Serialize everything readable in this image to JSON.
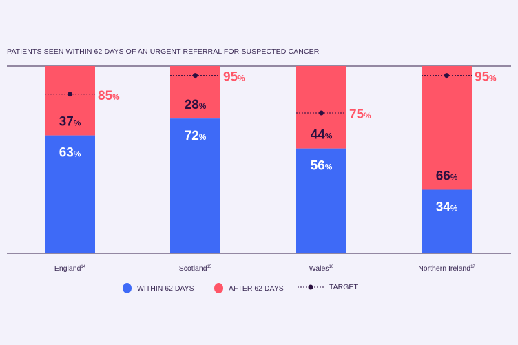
{
  "chart_data": {
    "type": "bar",
    "stacked": true,
    "title": "PATIENTS SEEN WITHIN 62 DAYS OF AN URGENT REFERRAL FOR SUSPECTED CANCER",
    "categories": [
      "England",
      "Scotland",
      "Wales",
      "Northern Ireland"
    ],
    "category_footnotes": [
      "14",
      "15",
      "16",
      "17"
    ],
    "ylim": [
      0,
      100
    ],
    "unit": "%",
    "grid": false,
    "series": [
      {
        "name": "WITHIN 62 DAYS",
        "color": "#3e6af7",
        "values": [
          63,
          72,
          56,
          34
        ]
      },
      {
        "name": "AFTER 62 DAYS",
        "color": "#ff5567",
        "values": [
          37,
          28,
          44,
          66
        ]
      }
    ],
    "target": {
      "name": "TARGET",
      "color": "#2b1040",
      "values": [
        85,
        95,
        75,
        95
      ]
    },
    "legend": "bottom-center"
  }
}
